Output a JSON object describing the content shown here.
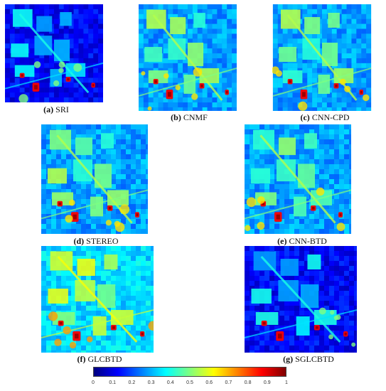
{
  "panels": [
    {
      "id": "a",
      "tag": "(a)",
      "label": "SRI",
      "theme": "dark"
    },
    {
      "id": "b",
      "tag": "(b)",
      "label": "CNMF",
      "theme": "mid"
    },
    {
      "id": "c",
      "tag": "(c)",
      "label": "CNN-CPD",
      "theme": "mid"
    },
    {
      "id": "d",
      "tag": "(d)",
      "label": "STEREO",
      "theme": "mid"
    },
    {
      "id": "e",
      "tag": "(e)",
      "label": "CNN-BTD",
      "theme": "mid"
    },
    {
      "id": "f",
      "tag": "(f)",
      "label": "GLCBTD",
      "theme": "bright"
    },
    {
      "id": "g",
      "tag": "(g)",
      "label": "SGLCBTD",
      "theme": "dark"
    }
  ],
  "colorbar": {
    "ticks": [
      "0",
      "0.1",
      "0.2",
      "0.3",
      "0.4",
      "0.5",
      "0.6",
      "0.7",
      "0.8",
      "0.9",
      "1"
    ],
    "colormap": [
      "#00007f",
      "#0000ff",
      "#007fff",
      "#00ffff",
      "#7fff7f",
      "#ffff00",
      "#ff7f00",
      "#ff0000",
      "#7f0000"
    ]
  }
}
